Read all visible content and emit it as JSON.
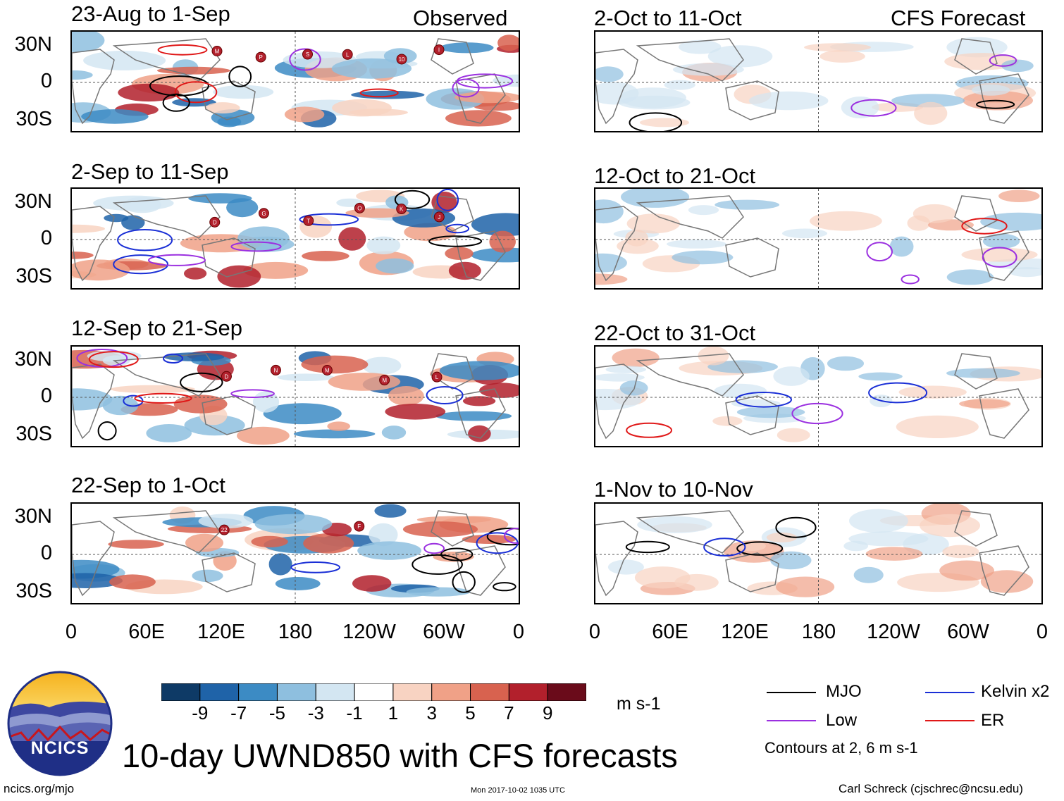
{
  "chart_data": {
    "type": "heatmap",
    "title": "10-day UWND850 with CFS forecasts",
    "variable": "850-hPa zonal wind anomaly",
    "units": "m s-1",
    "colorbar": {
      "labels": [
        "-9",
        "-7",
        "-5",
        "-3",
        "-1",
        "1",
        "3",
        "5",
        "7",
        "9"
      ],
      "colors": [
        "#0e3a66",
        "#1f63a8",
        "#3c8bc4",
        "#8ebfdf",
        "#d3e6f2",
        "#ffffff",
        "#f8d3c2",
        "#f0a187",
        "#d8624f",
        "#b2202c",
        "#6a0b1a"
      ]
    },
    "x_ticks": [
      "0",
      "60E",
      "120E",
      "180",
      "120W",
      "60W",
      "0"
    ],
    "y_ticks": [
      "30N",
      "0",
      "30S"
    ],
    "columns": [
      {
        "header": "Observed",
        "panels": [
          {
            "title": "23-Aug to 1-Sep",
            "cyclone_markers": [
              "M",
              "P",
              "S",
              "L",
              "10",
              "I"
            ]
          },
          {
            "title": "2-Sep to 11-Sep",
            "cyclone_markers": [
              "D",
              "G",
              "T",
              "O",
              "K",
              "J"
            ]
          },
          {
            "title": "12-Sep to 21-Sep",
            "cyclone_markers": [
              "D",
              "N",
              "M",
              "M",
              "L"
            ]
          },
          {
            "title": "22-Sep to 1-Oct",
            "cyclone_markers": [
              "22",
              "F"
            ]
          }
        ]
      },
      {
        "header": "CFS Forecast",
        "panels": [
          {
            "title": "2-Oct to 11-Oct",
            "cyclone_markers": []
          },
          {
            "title": "12-Oct to 21-Oct",
            "cyclone_markers": []
          },
          {
            "title": "22-Oct to 31-Oct",
            "cyclone_markers": []
          },
          {
            "title": "1-Nov to 10-Nov",
            "cyclone_markers": []
          }
        ]
      }
    ],
    "legend": [
      {
        "label": "MJO",
        "color": "#000000"
      },
      {
        "label": "Kelvin x2",
        "color": "#1a2fd6"
      },
      {
        "label": "Low",
        "color": "#9b30e0"
      },
      {
        "label": "ER",
        "color": "#e01818"
      }
    ],
    "contour_note": "Contours at 2, 6 m s-1"
  },
  "logo": {
    "text": "NCICS"
  },
  "footer": {
    "url": "ncics.org/mjo",
    "timestamp": "Mon 2017-10-02 1035 UTC",
    "author": "Carl Schreck (cjschrec@ncsu.edu)"
  }
}
